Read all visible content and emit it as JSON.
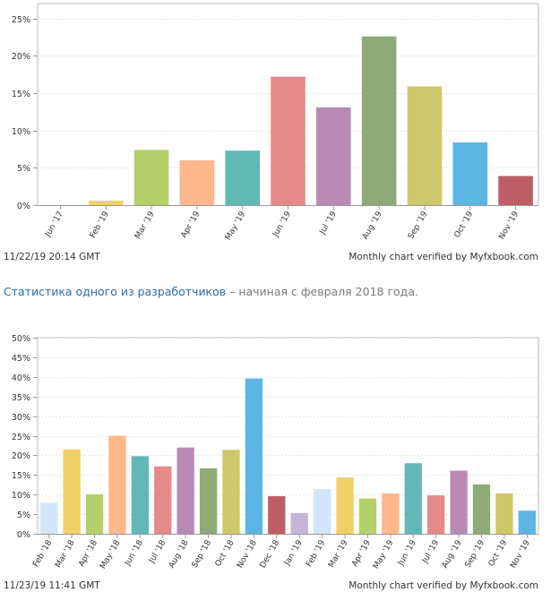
{
  "chart_data": [
    {
      "type": "bar",
      "title": "",
      "categories": [
        "Jun '17",
        "Feb '19",
        "Mar '19",
        "Apr '19",
        "May '19",
        "Jun '19",
        "Jul '19",
        "Aug '19",
        "Sep '19",
        "Oct '19",
        "Nov '19"
      ],
      "values": [
        0,
        0.6,
        7.4,
        6.0,
        7.3,
        17.2,
        13.1,
        22.6,
        15.9,
        8.4,
        3.9
      ],
      "colors": [
        "#f0d168",
        "#f0d168",
        "#b3d06a",
        "#fdb78b",
        "#62b8b6",
        "#e58989",
        "#b98ab5",
        "#8eab76",
        "#cdc96a",
        "#5cb6e3",
        "#bf5e66"
      ],
      "ylim": [
        0,
        27
      ],
      "yticks": [
        0,
        5,
        10,
        15,
        20,
        25
      ],
      "ytick_labels": [
        "0%",
        "5%",
        "10%",
        "15%",
        "20%",
        "25%"
      ],
      "xlabel": "",
      "ylabel": "",
      "grid": true
    },
    {
      "type": "bar",
      "title": "",
      "categories": [
        "Feb '18",
        "Mar '18",
        "Apr '18",
        "May '18",
        "Jun '18",
        "Jul '18",
        "Aug '18",
        "Sep '18",
        "Oct '18",
        "Nov '18",
        "Dec '18",
        "Jan '19",
        "Feb '19",
        "Mar '19",
        "Apr '19",
        "May '19",
        "Jun '19",
        "Jul '19",
        "Aug '19",
        "Sep '19",
        "Oct '19",
        "Nov '19"
      ],
      "values": [
        7.9,
        21.5,
        10.1,
        25.0,
        19.8,
        17.2,
        22.0,
        16.7,
        21.4,
        39.6,
        9.6,
        5.3,
        11.4,
        14.4,
        9.0,
        10.3,
        18.0,
        9.8,
        16.1,
        12.6,
        10.3,
        5.9
      ],
      "colors": [
        "#cfe6fb",
        "#f0d168",
        "#b3d06a",
        "#fdb78b",
        "#62b8b6",
        "#e58989",
        "#b98ab5",
        "#8eab76",
        "#cdc96a",
        "#5cb6e3",
        "#bf5e66",
        "#c4b5d8",
        "#cfe6fb",
        "#f0d168",
        "#b3d06a",
        "#fdb78b",
        "#62b8b6",
        "#e58989",
        "#b98ab5",
        "#8eab76",
        "#cdc96a",
        "#5cb6e3"
      ],
      "ylim": [
        0,
        50
      ],
      "yticks": [
        0,
        5,
        10,
        15,
        20,
        25,
        30,
        35,
        40,
        45,
        50
      ],
      "ytick_labels": [
        "0%",
        "5%",
        "10%",
        "15%",
        "20%",
        "25%",
        "30%",
        "35%",
        "40%",
        "45%",
        "50%"
      ],
      "xlabel": "",
      "ylabel": "",
      "grid": true
    }
  ],
  "chart1_footer": {
    "timestamp": "11/22/19 20:14 GMT",
    "verified": "Monthly chart verified by Myfxbook.com"
  },
  "caption": {
    "link_text": "Статистика одного из разработчиков",
    "rest_text": " – начиная с февраля 2018 года."
  },
  "chart2_footer": {
    "timestamp": "11/23/19 11:41 GMT",
    "verified": "Monthly chart verified by Myfxbook.com"
  }
}
